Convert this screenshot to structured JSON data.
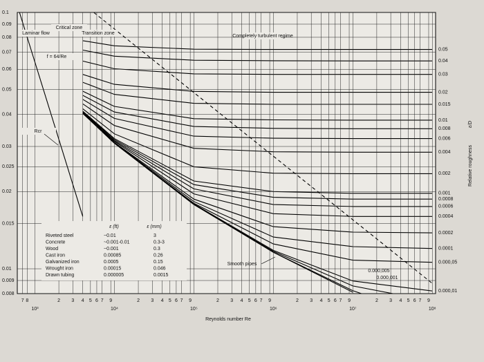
{
  "chart_data": {
    "type": "line",
    "xlabel": "Reynolds number Re",
    "y2label": "Relative roughness",
    "y2label_symbol": "ε/D",
    "log_x": true,
    "log_y": true,
    "grid": true,
    "xlim": [
      600,
      110000000
    ],
    "ylim": [
      0.008,
      0.1
    ],
    "yticks": [
      0.1,
      0.09,
      0.08,
      0.07,
      0.06,
      0.05,
      0.04,
      0.03,
      0.025,
      0.02,
      0.015,
      0.01,
      0.009,
      0.008
    ],
    "xticks": [
      {
        "value": 700,
        "label": "7"
      },
      {
        "value": 800,
        "label": "8"
      },
      {
        "value": 1000,
        "label": "10³"
      },
      {
        "value": 2000,
        "label": "2"
      },
      {
        "value": 3000,
        "label": "3"
      },
      {
        "value": 4000,
        "label": "4"
      },
      {
        "value": 5000,
        "label": "5"
      },
      {
        "value": 6000,
        "label": "6"
      },
      {
        "value": 7000,
        "label": "7"
      },
      {
        "value": 9000,
        "label": "9"
      },
      {
        "value": 10000,
        "label": "10⁴"
      },
      {
        "value": 20000,
        "label": "2"
      },
      {
        "value": 30000,
        "label": "3"
      },
      {
        "value": 40000,
        "label": "4"
      },
      {
        "value": 50000,
        "label": "5"
      },
      {
        "value": 60000,
        "label": "6"
      },
      {
        "value": 70000,
        "label": "7"
      },
      {
        "value": 90000,
        "label": "9"
      },
      {
        "value": 100000,
        "label": "10⁵"
      },
      {
        "value": 200000,
        "label": "2"
      },
      {
        "value": 300000,
        "label": "3"
      },
      {
        "value": 400000,
        "label": "4"
      },
      {
        "value": 500000,
        "label": "5"
      },
      {
        "value": 600000,
        "label": "6"
      },
      {
        "value": 700000,
        "label": "7"
      },
      {
        "value": 900000,
        "label": "9"
      },
      {
        "value": 1000000,
        "label": "10⁶"
      },
      {
        "value": 2000000,
        "label": "2"
      },
      {
        "value": 3000000,
        "label": "3"
      },
      {
        "value": 4000000,
        "label": "4"
      },
      {
        "value": 5000000,
        "label": "5"
      },
      {
        "value": 6000000,
        "label": "6"
      },
      {
        "value": 7000000,
        "label": "7"
      },
      {
        "value": 9000000,
        "label": "9"
      },
      {
        "value": 10000000,
        "label": "10⁷"
      },
      {
        "value": 20000000,
        "label": "2"
      },
      {
        "value": 30000000,
        "label": "3"
      },
      {
        "value": 40000000,
        "label": "4"
      },
      {
        "value": 50000000,
        "label": "5"
      },
      {
        "value": 60000000,
        "label": "6"
      },
      {
        "value": 70000000,
        "label": "7"
      },
      {
        "value": 90000000,
        "label": "9"
      },
      {
        "value": 100000000,
        "label": "10⁸"
      }
    ],
    "x": [
      4000,
      10000,
      100000,
      1000000,
      10000000,
      100000000
    ],
    "color": "#000000",
    "series": [
      {
        "name": "0.05",
        "values": [
          0.0776,
          0.0741,
          0.0719,
          0.0717,
          0.0717,
          0.0717
        ]
      },
      {
        "name": "0.04",
        "values": [
          0.0713,
          0.0675,
          0.0651,
          0.0648,
          0.0647,
          0.0647
        ]
      },
      {
        "name": "0.03",
        "values": [
          0.0646,
          0.0603,
          0.0576,
          0.0573,
          0.0573,
          0.0573
        ]
      },
      {
        "name": "0.02",
        "values": [
          0.0573,
          0.0524,
          0.0492,
          0.0488,
          0.0488,
          0.0488
        ]
      },
      {
        "name": "0.015",
        "values": [
          0.0534,
          0.0479,
          0.0442,
          0.0438,
          0.0438,
          0.0438
        ]
      },
      {
        "name": "0.01",
        "values": [
          0.0493,
          0.043,
          0.0385,
          0.0381,
          0.038,
          0.038
        ]
      },
      {
        "name": "0.008",
        "values": [
          0.0475,
          0.0409,
          0.0359,
          0.0353,
          0.0352,
          0.0352
        ]
      },
      {
        "name": "0.006",
        "values": [
          0.0458,
          0.0386,
          0.0329,
          0.0323,
          0.0322,
          0.0322
        ]
      },
      {
        "name": "0.004",
        "values": [
          0.044,
          0.0362,
          0.0295,
          0.0286,
          0.0285,
          0.0285
        ]
      },
      {
        "name": "0.002",
        "values": [
          0.0421,
          0.0336,
          0.025,
          0.0236,
          0.0235,
          0.0235
        ]
      },
      {
        "name": "0.001",
        "values": [
          0.0412,
          0.0322,
          0.022,
          0.02,
          0.0197,
          0.0197
        ]
      },
      {
        "name": "0.0008",
        "values": [
          0.0411,
          0.0319,
          0.0213,
          0.019,
          0.0187,
          0.0187
        ]
      },
      {
        "name": "0.0006",
        "values": [
          0.0409,
          0.0316,
          0.0205,
          0.0178,
          0.0175,
          0.0175
        ]
      },
      {
        "name": "0.0004",
        "values": [
          0.0407,
          0.0314,
          0.0196,
          0.0164,
          0.016,
          0.016
        ]
      },
      {
        "name": "0.0002",
        "values": [
          0.0406,
          0.0311,
          0.0187,
          0.0146,
          0.0139,
          0.0138
        ]
      },
      {
        "name": "0.0001",
        "values": [
          0.0405,
          0.031,
          0.0183,
          0.0133,
          0.0122,
          0.012
        ]
      },
      {
        "name": "0.000,05",
        "values": [
          0.0404,
          0.0309,
          0.018,
          0.0125,
          0.0108,
          0.0106
        ]
      },
      {
        "name": "0.000,01",
        "values": [
          0.0404,
          0.0309,
          0.0179,
          0.0118,
          0.00896,
          0.00819
        ]
      },
      {
        "name": "0.000,005",
        "values": [
          0.0404,
          0.0309,
          0.0178,
          0.0117,
          0.00857,
          0.00747
        ]
      },
      {
        "name": "0.000,001",
        "values": [
          0.0404,
          0.0309,
          0.0178,
          0.0116,
          0.00821,
          0.00645
        ]
      },
      {
        "name": "Smooth pipes",
        "values": [
          0.0404,
          0.0309,
          0.0178,
          0.0116,
          0.0081,
          null
        ]
      }
    ],
    "laminar": {
      "x": [
        640,
        4000
      ],
      "values": [
        0.1,
        0.016
      ]
    },
    "complete_turbulence_boundary": {
      "x": [
        5500,
        100000000
      ],
      "values": [
        0.1,
        0.00877
      ]
    },
    "annotations": [
      "Laminar flow",
      "Critical zone",
      "Transition zone",
      "Completely turbulent regime",
      "f = 64/Re",
      "Rcr"
    ],
    "table": {
      "headers": [
        "ε (ft)",
        "ε (mm)"
      ],
      "rows": [
        [
          "Riveted steel",
          "~0.01",
          "3"
        ],
        [
          "Concrete",
          "~0.001-0.01",
          "0.3-3"
        ],
        [
          "Wood",
          "~0.001",
          "0.3"
        ],
        [
          "Cast iron",
          "0.00085",
          "0.26"
        ],
        [
          "Galvanized iron",
          "0.0005",
          "0.15"
        ],
        [
          "Wrought iron",
          "0.00015",
          "0.046"
        ],
        [
          "Drawn tubing",
          "0.000005",
          "0.0015"
        ]
      ]
    }
  }
}
